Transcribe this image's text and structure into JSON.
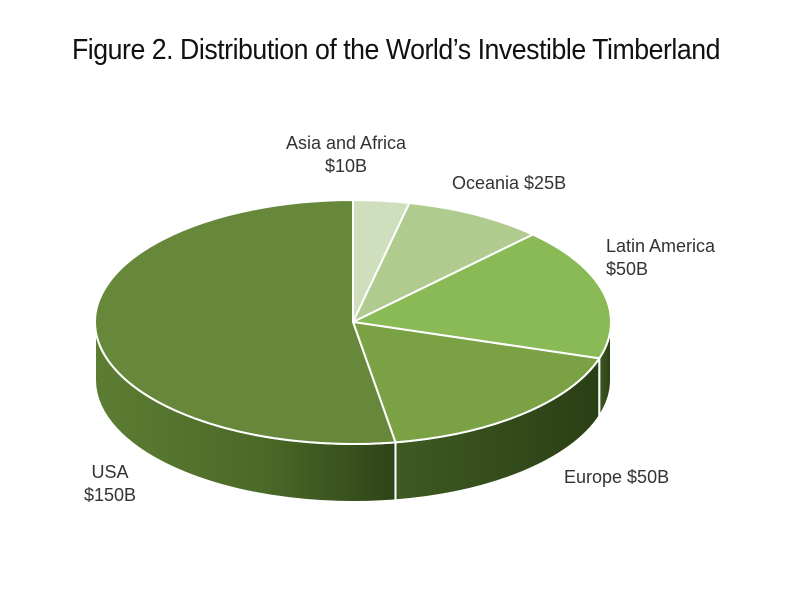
{
  "chart_data": {
    "type": "pie",
    "title": "Figure 2. Distribution of the World’s Investible Timberland",
    "total_label_unit": "$",
    "slices": [
      {
        "name": "Asia and Africa",
        "value": 10,
        "label_line1": "Asia and Africa",
        "label_line2": "$10B",
        "color": "#cfdfbd"
      },
      {
        "name": "Oceania",
        "value": 25,
        "label_line1": "Oceania $25B",
        "label_line2": "",
        "color": "#afcb8e"
      },
      {
        "name": "Latin America",
        "value": 50,
        "label_line1": "Latin America",
        "label_line2": "$50B",
        "color": "#8aba56"
      },
      {
        "name": "Europe",
        "value": 50,
        "label_line1": "Europe $50B",
        "label_line2": "",
        "color": "#7aa244"
      },
      {
        "name": "USA",
        "value": 150,
        "label_line1": "USA",
        "label_line2": "$150B",
        "color": "#67883a"
      }
    ],
    "style": "3d",
    "legend": "none"
  }
}
